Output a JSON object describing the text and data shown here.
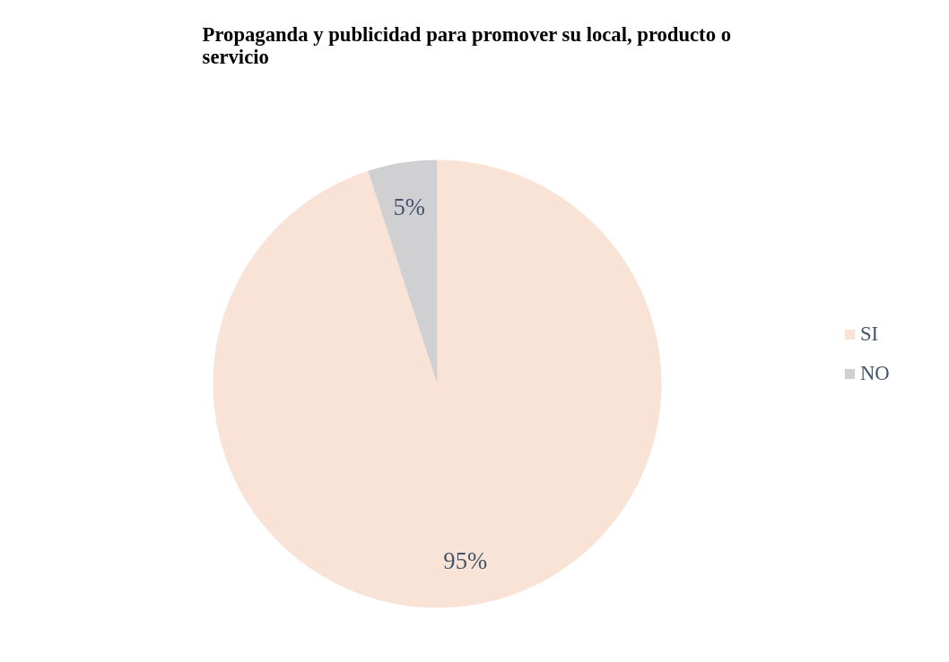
{
  "chart_data": {
    "type": "pie",
    "title": "Propaganda y publicidad para promover su local, producto o servicio",
    "categories": [
      "SI",
      "NO"
    ],
    "values": [
      95,
      5
    ],
    "colors": [
      "#f8e3d6",
      "#d0cfd1"
    ],
    "value_labels": [
      "95%",
      "5%"
    ],
    "legend": "right"
  }
}
